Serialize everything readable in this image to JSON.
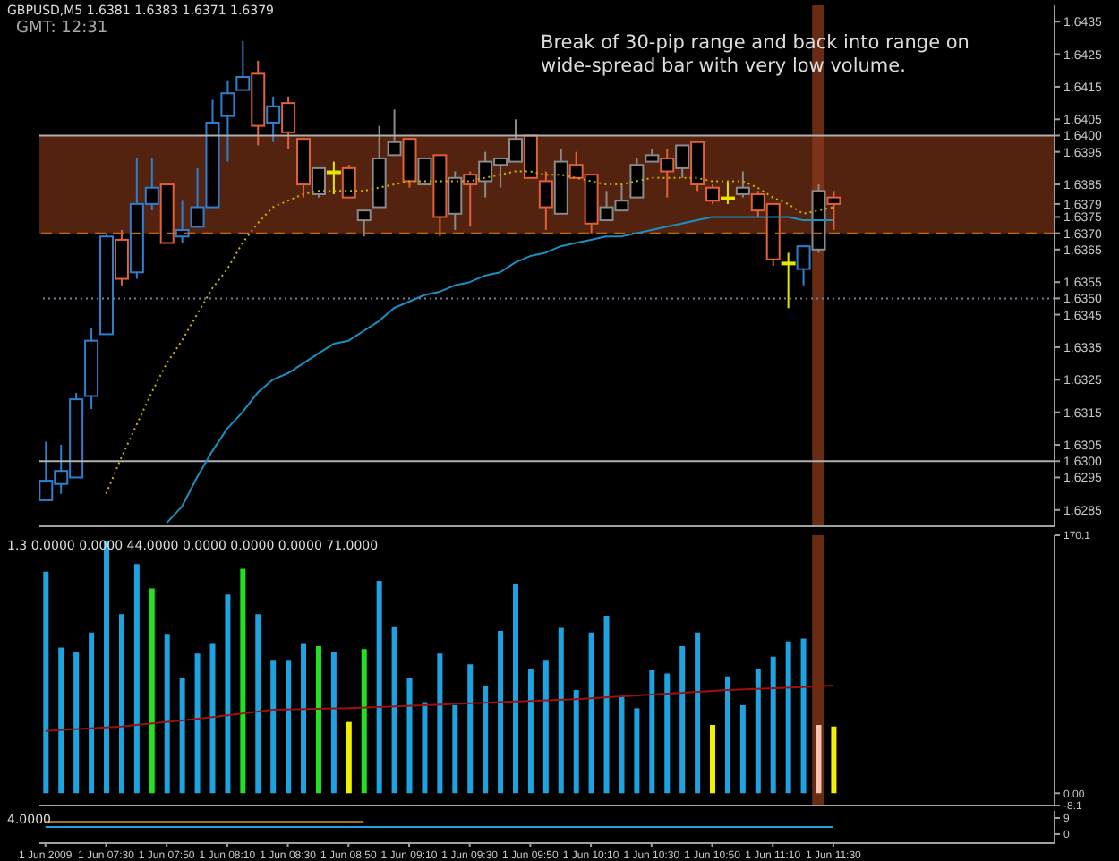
{
  "chart_data": [
    {
      "type": "candlestick",
      "title": "GBPUSD,M5 1.6381 1.6383 1.6371 1.6379",
      "subtitle": "GMT: 12:31",
      "annotations": [
        "Break of 30-pip range and back into range on wide-spread bar with very low volume."
      ],
      "x": [
        "2009-06-01T07:10",
        "2009-06-01T07:15",
        "2009-06-01T07:20",
        "2009-06-01T07:25",
        "2009-06-01T07:30",
        "2009-06-01T07:35",
        "2009-06-01T07:40",
        "2009-06-01T07:45",
        "2009-06-01T07:50",
        "2009-06-01T07:55",
        "2009-06-01T08:00",
        "2009-06-01T08:05",
        "2009-06-01T08:10",
        "2009-06-01T08:15",
        "2009-06-01T08:20",
        "2009-06-01T08:25",
        "2009-06-01T08:30",
        "2009-06-01T08:35",
        "2009-06-01T08:40",
        "2009-06-01T08:45",
        "2009-06-01T08:50",
        "2009-06-01T08:55",
        "2009-06-01T09:00",
        "2009-06-01T09:05",
        "2009-06-01T09:10",
        "2009-06-01T09:15",
        "2009-06-01T09:20",
        "2009-06-01T09:25",
        "2009-06-01T09:30",
        "2009-06-01T09:35",
        "2009-06-01T09:40",
        "2009-06-01T09:45",
        "2009-06-01T09:50",
        "2009-06-01T09:55",
        "2009-06-01T10:00",
        "2009-06-01T10:05",
        "2009-06-01T10:10",
        "2009-06-01T10:15",
        "2009-06-01T10:20",
        "2009-06-01T10:25",
        "2009-06-01T10:30",
        "2009-06-01T10:35",
        "2009-06-01T10:40",
        "2009-06-01T10:45",
        "2009-06-01T10:50",
        "2009-06-01T10:55",
        "2009-06-01T11:00",
        "2009-06-01T11:05",
        "2009-06-01T11:10",
        "2009-06-01T11:15",
        "2009-06-01T11:20",
        "2009-06-01T11:25",
        "2009-06-01T11:30"
      ],
      "series": [
        {
          "ohlc": [
            [
              1.6288,
              1.6306,
              1.6288,
              1.6294
            ],
            [
              1.6293,
              1.6305,
              1.629,
              1.6297
            ],
            [
              1.6295,
              1.6321,
              1.6295,
              1.6319
            ],
            [
              1.632,
              1.6341,
              1.6316,
              1.6337
            ],
            [
              1.6339,
              1.637,
              1.6339,
              1.6369
            ],
            [
              1.6368,
              1.6371,
              1.6354,
              1.6356
            ],
            [
              1.6358,
              1.6393,
              1.6356,
              1.6379
            ],
            [
              1.6379,
              1.6393,
              1.6377,
              1.6384
            ],
            [
              1.6385,
              1.6385,
              1.6367,
              1.6367
            ],
            [
              1.6369,
              1.638,
              1.6367,
              1.6371
            ],
            [
              1.6372,
              1.639,
              1.6372,
              1.6378
            ],
            [
              1.6378,
              1.6411,
              1.6378,
              1.6404
            ],
            [
              1.6406,
              1.6417,
              1.6392,
              1.6413
            ],
            [
              1.6414,
              1.6429,
              1.6414,
              1.6418
            ],
            [
              1.6419,
              1.6423,
              1.6397,
              1.6403
            ],
            [
              1.6404,
              1.6412,
              1.6398,
              1.6409
            ],
            [
              1.641,
              1.6412,
              1.6396,
              1.6401
            ],
            [
              1.6399,
              1.6399,
              1.6381,
              1.6385
            ],
            [
              1.6382,
              1.639,
              1.6381,
              1.639
            ],
            [
              1.6389,
              1.6392,
              1.6382,
              1.6389
            ],
            [
              1.639,
              1.6391,
              1.6381,
              1.6381
            ],
            [
              1.6374,
              1.6377,
              1.6369,
              1.6377
            ],
            [
              1.6378,
              1.6403,
              1.6378,
              1.6393
            ],
            [
              1.6394,
              1.6408,
              1.6394,
              1.6398
            ],
            [
              1.6399,
              1.6399,
              1.6384,
              1.6386
            ],
            [
              1.6385,
              1.6393,
              1.6385,
              1.6393
            ],
            [
              1.6394,
              1.6394,
              1.6369,
              1.6375
            ],
            [
              1.6376,
              1.6389,
              1.6371,
              1.6387
            ],
            [
              1.6388,
              1.6389,
              1.6372,
              1.6385
            ],
            [
              1.6386,
              1.6395,
              1.6381,
              1.6392
            ],
            [
              1.6391,
              1.6393,
              1.6384,
              1.6393
            ],
            [
              1.6392,
              1.6405,
              1.6392,
              1.6399
            ],
            [
              1.64,
              1.64,
              1.6387,
              1.6387
            ],
            [
              1.6386,
              1.6389,
              1.6371,
              1.6378
            ],
            [
              1.6376,
              1.6396,
              1.6376,
              1.6392
            ],
            [
              1.6391,
              1.6395,
              1.6387,
              1.6387
            ],
            [
              1.6388,
              1.6388,
              1.637,
              1.6373
            ],
            [
              1.6374,
              1.6383,
              1.6374,
              1.6378
            ],
            [
              1.6377,
              1.6385,
              1.6377,
              1.638
            ],
            [
              1.6381,
              1.6393,
              1.6381,
              1.6391
            ],
            [
              1.6392,
              1.6396,
              1.6392,
              1.6394
            ],
            [
              1.6393,
              1.6396,
              1.6381,
              1.6389
            ],
            [
              1.639,
              1.6397,
              1.6387,
              1.6397
            ],
            [
              1.6398,
              1.6398,
              1.6383,
              1.6385
            ],
            [
              1.6384,
              1.6385,
              1.6379,
              1.638
            ],
            [
              1.6381,
              1.6386,
              1.6379,
              1.6381
            ],
            [
              1.6382,
              1.6389,
              1.6381,
              1.6384
            ],
            [
              1.6382,
              1.6383,
              1.6375,
              1.6377
            ],
            [
              1.6379,
              1.6379,
              1.636,
              1.6362
            ],
            [
              1.6361,
              1.6364,
              1.6347,
              1.6361
            ],
            [
              1.6359,
              1.6366,
              1.6354,
              1.6366
            ],
            [
              1.6365,
              1.6385,
              1.6364,
              1.6383
            ],
            [
              1.6381,
              1.6383,
              1.6371,
              1.6379
            ]
          ],
          "colors": [
            "#2f7fd0",
            "#2f7fd0",
            "#2f7fd0",
            "#2f7fd0",
            "#2f7fd0",
            "#e0603a",
            "#2f7fd0",
            "#2f7fd0",
            "#e0603a",
            "#2f7fd0",
            "#2f7fd0",
            "#2f7fd0",
            "#2f7fd0",
            "#2f7fd0",
            "#e0603a",
            "#2f7fd0",
            "#e0603a",
            "#e0603a",
            "#8a8a8a",
            "#e6e600",
            "#e0603a",
            "#8a8a8a",
            "#8a8a8a",
            "#8a8a8a",
            "#e0603a",
            "#8a8a8a",
            "#e0603a",
            "#8a8a8a",
            "#e0603a",
            "#8a8a8a",
            "#8a8a8a",
            "#8a8a8a",
            "#e0603a",
            "#e0603a",
            "#8a8a8a",
            "#e0603a",
            "#e0603a",
            "#8a8a8a",
            "#8a8a8a",
            "#8a8a8a",
            "#8a8a8a",
            "#e0603a",
            "#8a8a8a",
            "#e0603a",
            "#e0603a",
            "#e6e600",
            "#8a8a8a",
            "#e0603a",
            "#e0603a",
            "#e6e600",
            "#2f7fd0",
            "#8a8a8a",
            "#e0603a"
          ]
        },
        {
          "type": "line",
          "color": "#c8b400",
          "line_style": "dotted",
          "values": [
            null,
            null,
            null,
            null,
            1.629,
            1.6301,
            1.6311,
            1.6321,
            1.633,
            1.6337,
            1.6345,
            1.6353,
            1.6359,
            1.6367,
            1.6373,
            1.6378,
            1.638,
            1.6382,
            1.6383,
            1.6383,
            1.6383,
            1.6383,
            1.6384,
            1.6385,
            1.6386,
            1.6386,
            1.6386,
            1.6386,
            1.6386,
            1.6387,
            1.6388,
            1.6389,
            1.6389,
            1.6388,
            1.6388,
            1.6387,
            1.6386,
            1.6385,
            1.6385,
            1.6386,
            1.6387,
            1.6387,
            1.6387,
            1.6387,
            1.6386,
            1.6386,
            1.6386,
            1.6384,
            1.6381,
            1.6379,
            1.6376,
            1.6377,
            1.6378
          ]
        },
        {
          "type": "line",
          "color": "#1a8fc0",
          "values": [
            null,
            null,
            null,
            null,
            null,
            null,
            null,
            null,
            1.6281,
            1.6286,
            1.6295,
            1.6303,
            1.631,
            1.6315,
            1.6321,
            1.6325,
            1.6327,
            1.633,
            1.6333,
            1.6336,
            1.6337,
            1.634,
            1.6343,
            1.6347,
            1.6349,
            1.6351,
            1.6352,
            1.6354,
            1.6355,
            1.6357,
            1.6358,
            1.6361,
            1.6363,
            1.6364,
            1.6366,
            1.6367,
            1.6368,
            1.6369,
            1.6369,
            1.637,
            1.6371,
            1.6372,
            1.6373,
            1.6374,
            1.6375,
            1.6375,
            1.6375,
            1.6375,
            1.6375,
            1.6375,
            1.6374,
            1.6374,
            1.6374
          ]
        }
      ],
      "xlim": [
        "2009-06-01T07:08",
        "2009-06-01T12:43"
      ],
      "ylim": [
        1.628,
        1.644
      ],
      "yticks": [
        1.6285,
        1.6295,
        {
          "value": 1.63,
          "label": "1.6300"
        },
        1.6305,
        1.6315,
        1.6325,
        1.6335,
        1.6345,
        {
          "value": 1.635,
          "label": "1.6350"
        },
        1.6355,
        1.6365,
        {
          "value": 1.637,
          "label": "1.6370"
        },
        1.6375,
        1.6379,
        1.6385,
        1.6395,
        {
          "value": 1.64,
          "label": "1.6400"
        },
        1.6405,
        1.6415,
        1.6425,
        1.6435
      ],
      "ref_lines": [
        {
          "axis": "y",
          "value": 1.64,
          "color": "#b0b0b0",
          "line_style": "solid"
        },
        {
          "axis": "y",
          "value": 1.637,
          "color": "#c06a10",
          "line_style": "dashed"
        },
        {
          "axis": "y",
          "value": 1.635,
          "color": "#7080a0",
          "line_style": "dotted"
        },
        {
          "axis": "y",
          "value": 1.63,
          "color": "#b0b0b0",
          "line_style": "solid"
        }
      ],
      "bands": [
        {
          "axis": "y",
          "from": 1.637,
          "to": 1.64,
          "color": "#8b3a1a"
        },
        {
          "axis": "x",
          "from": "2009-06-01T11:23",
          "to": "2009-06-01T11:27",
          "color": "#8b3a1a"
        }
      ],
      "tick_labels": "y"
    },
    {
      "type": "bar",
      "subtitle": "1.3 0.0000 0.0000 44.0000 0.0000 0.0000 0.0000 71.0000",
      "x": [
        "2009-06-01T07:10",
        "2009-06-01T07:15",
        "2009-06-01T07:20",
        "2009-06-01T07:25",
        "2009-06-01T07:30",
        "2009-06-01T07:35",
        "2009-06-01T07:40",
        "2009-06-01T07:45",
        "2009-06-01T07:50",
        "2009-06-01T07:55",
        "2009-06-01T08:00",
        "2009-06-01T08:05",
        "2009-06-01T08:10",
        "2009-06-01T08:15",
        "2009-06-01T08:20",
        "2009-06-01T08:25",
        "2009-06-01T08:30",
        "2009-06-01T08:35",
        "2009-06-01T08:40",
        "2009-06-01T08:45",
        "2009-06-01T08:50",
        "2009-06-01T08:55",
        "2009-06-01T09:00",
        "2009-06-01T09:05",
        "2009-06-01T09:10",
        "2009-06-01T09:15",
        "2009-06-01T09:20",
        "2009-06-01T09:25",
        "2009-06-01T09:30",
        "2009-06-01T09:35",
        "2009-06-01T09:40",
        "2009-06-01T09:45",
        "2009-06-01T09:50",
        "2009-06-01T09:55",
        "2009-06-01T10:00",
        "2009-06-01T10:05",
        "2009-06-01T10:10",
        "2009-06-01T10:15",
        "2009-06-01T10:20",
        "2009-06-01T10:25",
        "2009-06-01T10:30",
        "2009-06-01T10:35",
        "2009-06-01T10:40",
        "2009-06-01T10:45",
        "2009-06-01T10:50",
        "2009-06-01T10:55",
        "2009-06-01T11:00",
        "2009-06-01T11:05",
        "2009-06-01T11:10",
        "2009-06-01T11:15",
        "2009-06-01T11:20",
        "2009-06-01T11:25",
        "2009-06-01T11:30"
      ],
      "series": [
        {
          "values": [
            146,
            96,
            93,
            106,
            166,
            118,
            151,
            135,
            105,
            76,
            92,
            99,
            131,
            148,
            118,
            88,
            88,
            99,
            97,
            93,
            47,
            95,
            140,
            110,
            76,
            60,
            92,
            58,
            85,
            71,
            107,
            138,
            82,
            88,
            109,
            68,
            106,
            117,
            64,
            56,
            81,
            79,
            97,
            106,
            45,
            77,
            58,
            82,
            90,
            100,
            102,
            45,
            44
          ],
          "colors": [
            "#1ca3e0",
            "#1ca3e0",
            "#1ca3e0",
            "#1ca3e0",
            "#1ca3e0",
            "#1ca3e0",
            "#1ca3e0",
            "#22e022",
            "#1ca3e0",
            "#1ca3e0",
            "#1ca3e0",
            "#1ca3e0",
            "#1ca3e0",
            "#22e022",
            "#1ca3e0",
            "#1ca3e0",
            "#1ca3e0",
            "#1ca3e0",
            "#22e022",
            "#1ca3e0",
            "#f0f000",
            "#22e022",
            "#1ca3e0",
            "#1ca3e0",
            "#1ca3e0",
            "#1ca3e0",
            "#1ca3e0",
            "#1ca3e0",
            "#1ca3e0",
            "#1ca3e0",
            "#1ca3e0",
            "#1ca3e0",
            "#1ca3e0",
            "#1ca3e0",
            "#1ca3e0",
            "#1ca3e0",
            "#1ca3e0",
            "#1ca3e0",
            "#1ca3e0",
            "#1ca3e0",
            "#1ca3e0",
            "#1ca3e0",
            "#1ca3e0",
            "#1ca3e0",
            "#f0f000",
            "#1ca3e0",
            "#1ca3e0",
            "#1ca3e0",
            "#1ca3e0",
            "#1ca3e0",
            "#1ca3e0",
            "#f5c2b0",
            "#f0f000"
          ]
        },
        {
          "type": "line",
          "color": "#a01010",
          "x": [
            "2009-06-01T07:10",
            "2009-06-01T07:35",
            "2009-06-01T08:00",
            "2009-06-01T08:25",
            "2009-06-01T08:50",
            "2009-06-01T09:15",
            "2009-06-01T09:40",
            "2009-06-01T10:05",
            "2009-06-01T10:30",
            "2009-06-01T10:55",
            "2009-06-01T11:20",
            "2009-06-01T11:30"
          ],
          "values": [
            41,
            44,
            49,
            55,
            56,
            58,
            60,
            62,
            65,
            68,
            70,
            71
          ]
        }
      ],
      "xlim": [
        "2009-06-01T07:08",
        "2009-06-01T12:43"
      ],
      "ylim": [
        -8.1,
        170.1
      ],
      "yticks": [
        -8.1,
        {
          "value": 0,
          "label": "0.00"
        },
        170.1
      ],
      "bands": [
        {
          "axis": "x",
          "from": "2009-06-01T11:23",
          "to": "2009-06-01T11:27",
          "color": "#8b3a1a"
        }
      ],
      "tick_labels": "y"
    },
    {
      "type": "line",
      "title": "4.0000",
      "series": [
        {
          "color": "#a07020",
          "x": [
            "2009-06-01T07:10",
            "2009-06-01T08:55"
          ],
          "values": [
            7,
            7
          ]
        },
        {
          "color": "#1ca3e0",
          "x": [
            "2009-06-01T07:10",
            "2009-06-01T11:30"
          ],
          "values": [
            4,
            4
          ]
        }
      ],
      "xlim": [
        "2009-06-01T07:08",
        "2009-06-01T12:43"
      ],
      "xticks": [
        {
          "value": "2009-06-01T07:10",
          "label": "1 Jun 2009"
        },
        {
          "value": "2009-06-01T07:30",
          "label": "1 Jun 07:30"
        },
        {
          "value": "2009-06-01T07:50",
          "label": "1 Jun 07:50"
        },
        {
          "value": "2009-06-01T08:10",
          "label": "1 Jun 08:10"
        },
        {
          "value": "2009-06-01T08:30",
          "label": "1 Jun 08:30"
        },
        {
          "value": "2009-06-01T08:50",
          "label": "1 Jun 08:50"
        },
        {
          "value": "2009-06-01T09:10",
          "label": "1 Jun 09:10"
        },
        {
          "value": "2009-06-01T09:30",
          "label": "1 Jun 09:30"
        },
        {
          "value": "2009-06-01T09:50",
          "label": "1 Jun 09:50"
        },
        {
          "value": "2009-06-01T10:10",
          "label": "1 Jun 10:10"
        },
        {
          "value": "2009-06-01T10:30",
          "label": "1 Jun 10:30"
        },
        {
          "value": "2009-06-01T10:50",
          "label": "1 Jun 10:50"
        },
        {
          "value": "2009-06-01T11:10",
          "label": "1 Jun 11:10"
        },
        {
          "value": "2009-06-01T11:30",
          "label": "1 Jun 11:30"
        }
      ],
      "ylim": [
        -5,
        13
      ],
      "yticks": [
        0,
        9
      ]
    }
  ]
}
